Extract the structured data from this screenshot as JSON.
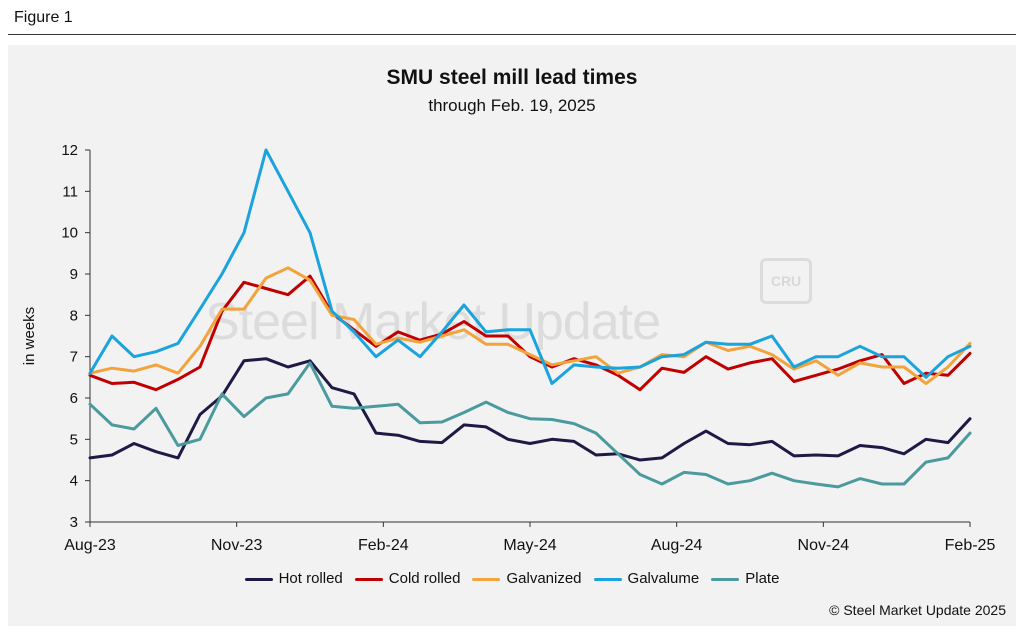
{
  "figure_label": "Figure 1",
  "credit": "© Steel Market Update 2025",
  "watermark": {
    "text": "Steel Market Update",
    "logo_text": "CRU"
  },
  "chart_data": {
    "type": "line",
    "title": "SMU steel mill lead times",
    "subtitle": "through Feb. 19, 2025",
    "xlabel": "",
    "ylabel": "in weeks",
    "ylim": [
      3,
      12
    ],
    "yticks": [
      3,
      4,
      5,
      6,
      7,
      8,
      9,
      10,
      11,
      12
    ],
    "x_tick_labels": [
      {
        "label": "Aug-23",
        "index": 0
      },
      {
        "label": "Nov-23",
        "index": 6
      },
      {
        "label": "Feb-24",
        "index": 12
      },
      {
        "label": "May-24",
        "index": 18
      },
      {
        "label": "Aug-24",
        "index": 24
      },
      {
        "label": "Nov-24",
        "index": 30
      },
      {
        "label": "Feb-25",
        "index": 36
      }
    ],
    "n_points": 37,
    "series": [
      {
        "name": "Hot rolled",
        "color": "#1f1a45",
        "values": [
          4.55,
          4.62,
          4.9,
          4.7,
          4.55,
          5.6,
          6.05,
          6.9,
          6.95,
          6.75,
          6.9,
          6.25,
          6.1,
          5.15,
          5.1,
          4.95,
          4.92,
          5.35,
          5.3,
          5.0,
          4.9,
          5.0,
          4.95,
          4.62,
          4.65,
          4.5,
          4.55,
          4.9,
          5.2,
          4.9,
          4.87,
          4.95,
          4.6,
          4.62,
          4.6,
          4.85,
          4.8
        ]
      },
      {
        "name": "Cold rolled",
        "color": "#c00000",
        "values": [
          6.55,
          6.35,
          6.38,
          6.2,
          6.45,
          6.75,
          8.1,
          8.8,
          8.65,
          8.5,
          8.95,
          8.05,
          7.65,
          7.25,
          7.6,
          7.4,
          7.55,
          7.85,
          7.5,
          7.5,
          7.0,
          6.75,
          6.95,
          6.8,
          6.55,
          6.2,
          6.72,
          6.62,
          7.0,
          6.7,
          6.85,
          6.95,
          6.4,
          6.55,
          6.7,
          6.9,
          7.05
        ]
      },
      {
        "name": "Galvanized",
        "color": "#f2a33c",
        "values": [
          6.6,
          6.72,
          6.65,
          6.8,
          6.6,
          7.25,
          8.15,
          8.15,
          8.9,
          9.15,
          8.85,
          8.0,
          7.9,
          7.3,
          7.45,
          7.35,
          7.5,
          7.65,
          7.3,
          7.3,
          7.05,
          6.8,
          6.9,
          7.0,
          6.6,
          6.75,
          7.05,
          7.0,
          7.35,
          7.15,
          7.25,
          7.05,
          6.7,
          6.9,
          6.55,
          6.85,
          6.75
        ]
      },
      {
        "name": "Galvalume",
        "color": "#1aa3dc",
        "values": [
          6.6,
          7.5,
          7.0,
          7.12,
          7.32,
          8.15,
          9.0,
          10.0,
          12.0,
          11.0,
          10.0,
          8.1,
          7.6,
          7.0,
          7.4,
          7.0,
          7.6,
          8.25,
          7.6,
          7.65,
          7.65,
          6.35,
          6.8,
          6.75,
          6.72,
          6.75,
          7.0,
          7.05,
          7.35,
          7.3,
          7.3,
          7.5,
          6.75,
          7.0,
          7.0,
          7.25,
          7.0
        ]
      },
      {
        "name": "Plate",
        "color": "#4b9a9e",
        "values": [
          5.85,
          5.35,
          5.25,
          5.75,
          4.85,
          5.0,
          6.1,
          5.55,
          6.0,
          6.1,
          6.85,
          5.8,
          5.75,
          5.8,
          5.85,
          5.4,
          5.42,
          5.65,
          5.9,
          5.65,
          5.5,
          5.48,
          5.38,
          5.15,
          4.65,
          4.15,
          3.92,
          4.2,
          4.15,
          3.92,
          4.0,
          4.18,
          4.0,
          3.92,
          3.85,
          4.05,
          3.92
        ]
      }
    ],
    "extra_tail": {
      "Hot rolled": [
        4.65,
        5.0,
        4.92,
        5.5
      ],
      "Cold rolled": [
        6.35,
        6.6,
        6.55,
        7.08
      ],
      "Galvanized": [
        6.75,
        6.35,
        6.75,
        7.32
      ],
      "Galvalume": [
        7.0,
        6.5,
        7.0,
        7.25
      ],
      "Plate": [
        3.92,
        4.45,
        4.55,
        5.15
      ]
    }
  }
}
